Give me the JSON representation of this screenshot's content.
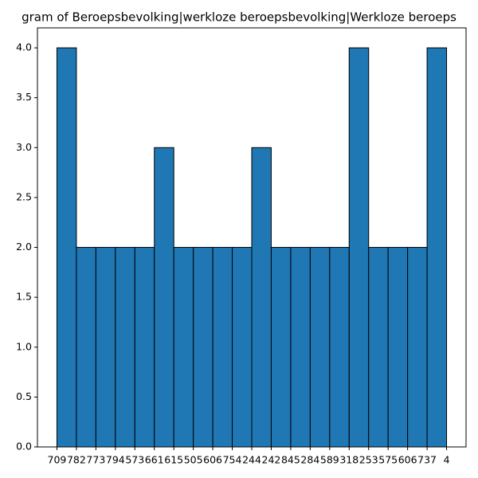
{
  "chart_data": {
    "type": "histogram",
    "title": "gram of Beroepsbevolking|werkloze beroepsbevolking|Werkloze beroeps",
    "bins": [
      0,
      1,
      2,
      3,
      4,
      5,
      6,
      7,
      8,
      9,
      10,
      11,
      12,
      13,
      14,
      15,
      16,
      17,
      18,
      19,
      20
    ],
    "values": [
      4,
      2,
      2,
      2,
      2,
      3,
      2,
      2,
      2,
      2,
      3,
      2,
      2,
      2,
      2,
      4,
      2,
      2,
      2,
      4
    ],
    "color": "#1f77b4",
    "edgecolor": "#000000",
    "xlim": [
      -1,
      21
    ],
    "ylim": [
      0,
      4.2
    ],
    "xticks": [
      {
        "value": 0,
        "label": "709"
      },
      {
        "value": 1,
        "label": "782"
      },
      {
        "value": 2,
        "label": "773"
      },
      {
        "value": 3,
        "label": "794"
      },
      {
        "value": 4,
        "label": "573"
      },
      {
        "value": 5,
        "label": "661"
      },
      {
        "value": 6,
        "label": "615"
      },
      {
        "value": 7,
        "label": "505"
      },
      {
        "value": 8,
        "label": "606"
      },
      {
        "value": 9,
        "label": "754"
      },
      {
        "value": 10,
        "label": "244"
      },
      {
        "value": 11,
        "label": "242"
      },
      {
        "value": 12,
        "label": "845"
      },
      {
        "value": 13,
        "label": "284"
      },
      {
        "value": 14,
        "label": "589"
      },
      {
        "value": 15,
        "label": "318"
      },
      {
        "value": 16,
        "label": "253"
      },
      {
        "value": 17,
        "label": "575"
      },
      {
        "value": 18,
        "label": "606"
      },
      {
        "value": 19,
        "label": "737"
      },
      {
        "value": 20,
        "label": "4"
      }
    ],
    "yticks": [
      {
        "value": 0,
        "label": "0.0"
      },
      {
        "value": 0.5,
        "label": "0.5"
      },
      {
        "value": 1,
        "label": "1.0"
      },
      {
        "value": 1.5,
        "label": "1.5"
      },
      {
        "value": 2,
        "label": "2.0"
      },
      {
        "value": 2.5,
        "label": "2.5"
      },
      {
        "value": 3,
        "label": "3.0"
      },
      {
        "value": 3.5,
        "label": "3.5"
      },
      {
        "value": 4,
        "label": "4.0"
      }
    ]
  }
}
